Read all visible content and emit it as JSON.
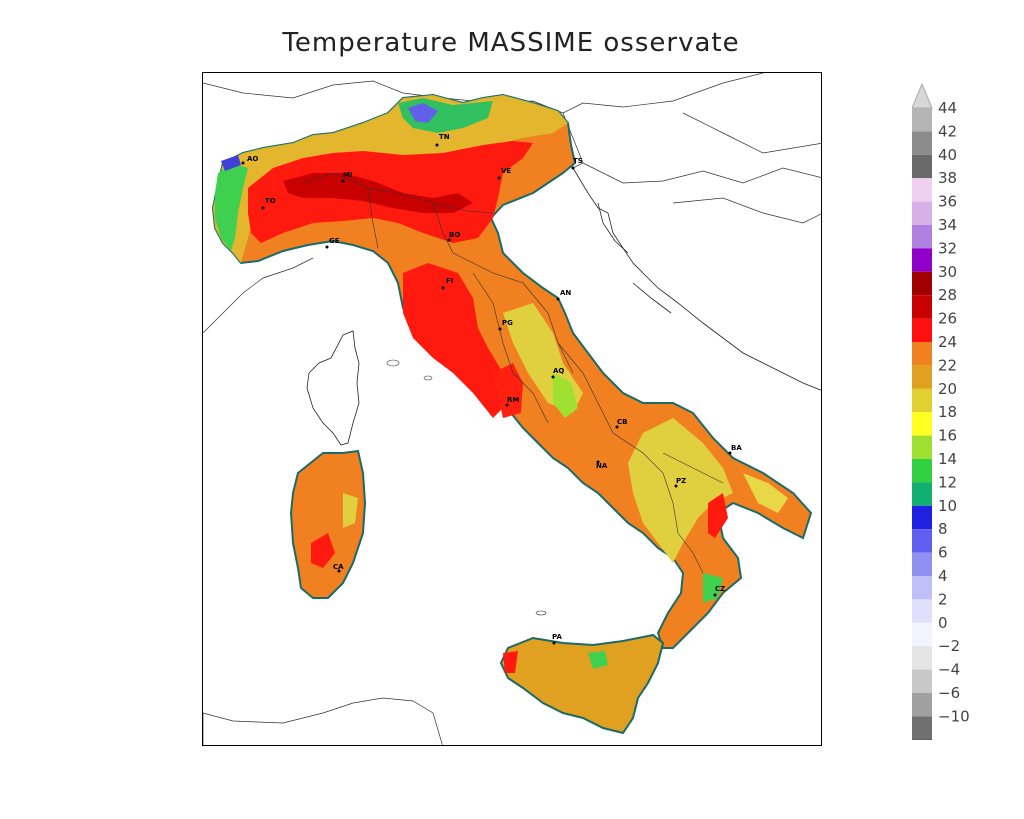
{
  "title": "Temperature MASSIME osservate",
  "legend": {
    "labels": [
      "44",
      "42",
      "40",
      "38",
      "36",
      "34",
      "32",
      "30",
      "28",
      "26",
      "24",
      "22",
      "20",
      "18",
      "16",
      "14",
      "12",
      "10",
      "8",
      "6",
      "4",
      "2",
      "0",
      "−2",
      "−4",
      "−6",
      "−10"
    ],
    "colors": [
      "#b4b4b4",
      "#8c8c8c",
      "#6a6a6a",
      "#f0d0f0",
      "#d8b0e8",
      "#b080e0",
      "#9000c8",
      "#a00000",
      "#c80000",
      "#ff1010",
      "#f08020",
      "#e0a020",
      "#e0d030",
      "#ffff20",
      "#a0e030",
      "#30d040",
      "#10b070",
      "#2020e0",
      "#6060f0",
      "#9090f0",
      "#c0c0f8",
      "#e0e0fc",
      "#f4f4ff",
      "#e4e4e4",
      "#c8c8c8",
      "#a0a0a0",
      "#707070"
    ],
    "top_arrow_color": "#d8d8d8",
    "bottom_arrow_color": "#000000"
  },
  "cities": [
    {
      "code": "AO",
      "label": "AO"
    },
    {
      "code": "TO",
      "label": "TO"
    },
    {
      "code": "MI",
      "label": "MI"
    },
    {
      "code": "TN",
      "label": "TN"
    },
    {
      "code": "VE",
      "label": "VE"
    },
    {
      "code": "TS",
      "label": "TS"
    },
    {
      "code": "GE",
      "label": "GE"
    },
    {
      "code": "BO",
      "label": "BO"
    },
    {
      "code": "FI",
      "label": "FI"
    },
    {
      "code": "AN",
      "label": "AN"
    },
    {
      "code": "PG",
      "label": "PG"
    },
    {
      "code": "AQ",
      "label": "AQ"
    },
    {
      "code": "RM",
      "label": "RM"
    },
    {
      "code": "CB",
      "label": "CB"
    },
    {
      "code": "NA",
      "label": "NA"
    },
    {
      "code": "BA",
      "label": "BA"
    },
    {
      "code": "PZ",
      "label": "PZ"
    },
    {
      "code": "CZ",
      "label": "CZ"
    },
    {
      "code": "PA",
      "label": "PA"
    },
    {
      "code": "CA",
      "label": "CA"
    }
  ]
}
